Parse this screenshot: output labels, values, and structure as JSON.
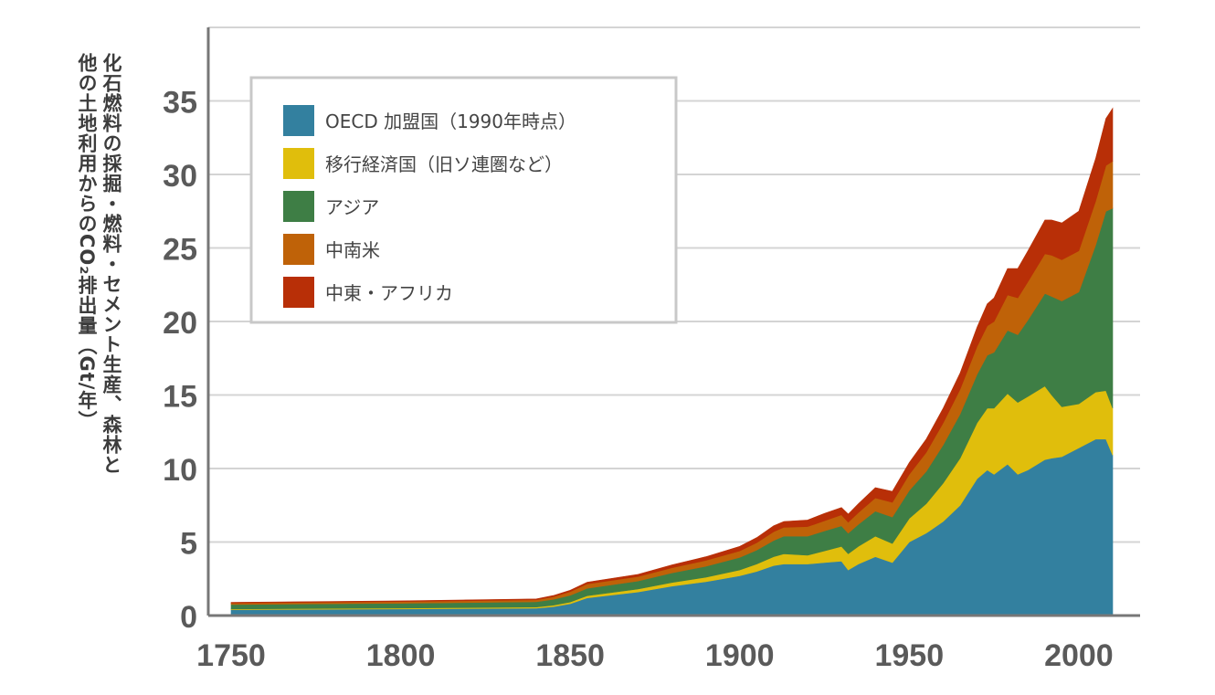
{
  "colors": {
    "oecd": "#33809f",
    "transition": "#e0be0c",
    "asia": "#3e7e45",
    "latam": "#bf6208",
    "mideast_africa": "#b82f07",
    "grid": "#d4d4d4",
    "axis": "#777777"
  },
  "chart_data": {
    "type": "area",
    "stacked": true,
    "ylabel_lines": [
      "化石燃料の採掘・燃料・セメント生産、森林と",
      "他の土地利用からのCO₂排出量（Gt/年）"
    ],
    "xlabel": "",
    "xlim": [
      1750,
      2010
    ],
    "ylim": [
      0,
      40
    ],
    "x_ticks": [
      "1750",
      "1800",
      "1850",
      "1900",
      "1950",
      "2000"
    ],
    "y_ticks": [
      "0",
      "5",
      "10",
      "15",
      "20",
      "25",
      "30",
      "35"
    ],
    "grid": true,
    "legend_position": "top-left",
    "x": [
      1750,
      1800,
      1840,
      1845,
      1850,
      1855,
      1870,
      1880,
      1890,
      1900,
      1905,
      1910,
      1913,
      1920,
      1925,
      1930,
      1932,
      1935,
      1940,
      1945,
      1950,
      1955,
      1960,
      1965,
      1970,
      1973,
      1975,
      1979,
      1982,
      1985,
      1990,
      1992,
      1995,
      2000,
      2005,
      2008,
      2010
    ],
    "series": [
      {
        "name": "OECD 加盟国（1990年時点）",
        "values": [
          0.4,
          0.45,
          0.5,
          0.6,
          0.8,
          1.2,
          1.6,
          2.0,
          2.3,
          2.7,
          3.0,
          3.4,
          3.5,
          3.5,
          3.6,
          3.7,
          3.1,
          3.5,
          4.0,
          3.6,
          5.0,
          5.6,
          6.4,
          7.5,
          9.3,
          9.9,
          9.6,
          10.3,
          9.6,
          9.9,
          10.6,
          10.7,
          10.8,
          11.4,
          12.0,
          12.0,
          10.9
        ]
      },
      {
        "name": "移行経済国（旧ソ連圏など）",
        "values": [
          0.05,
          0.06,
          0.08,
          0.1,
          0.12,
          0.15,
          0.2,
          0.25,
          0.3,
          0.4,
          0.5,
          0.6,
          0.7,
          0.6,
          0.8,
          1.0,
          1.1,
          1.2,
          1.4,
          1.3,
          1.6,
          2.0,
          2.6,
          3.2,
          3.8,
          4.2,
          4.5,
          4.8,
          4.9,
          5.0,
          5.0,
          4.3,
          3.4,
          3.0,
          3.2,
          3.3,
          3.2
        ]
      },
      {
        "name": "アジア",
        "values": [
          0.3,
          0.32,
          0.35,
          0.4,
          0.45,
          0.5,
          0.55,
          0.65,
          0.75,
          0.85,
          0.95,
          1.1,
          1.2,
          1.3,
          1.35,
          1.4,
          1.4,
          1.5,
          1.7,
          1.8,
          1.9,
          2.2,
          2.6,
          3.0,
          3.3,
          3.6,
          3.8,
          4.3,
          4.6,
          5.2,
          6.3,
          6.7,
          7.2,
          7.6,
          10.0,
          12.2,
          13.6
        ]
      },
      {
        "name": "中南米",
        "values": [
          0.1,
          0.12,
          0.14,
          0.18,
          0.25,
          0.3,
          0.3,
          0.35,
          0.4,
          0.45,
          0.5,
          0.6,
          0.6,
          0.65,
          0.7,
          0.75,
          0.75,
          0.8,
          0.9,
          1.0,
          1.1,
          1.3,
          1.5,
          1.7,
          1.9,
          2.0,
          2.1,
          2.4,
          2.5,
          2.6,
          2.7,
          2.8,
          2.8,
          2.8,
          3.0,
          3.1,
          3.2
        ]
      },
      {
        "name": "中東・アフリカ",
        "values": [
          0.05,
          0.05,
          0.06,
          0.08,
          0.1,
          0.12,
          0.15,
          0.2,
          0.25,
          0.3,
          0.35,
          0.4,
          0.4,
          0.45,
          0.5,
          0.5,
          0.55,
          0.6,
          0.7,
          0.75,
          0.8,
          0.9,
          1.0,
          1.1,
          1.3,
          1.5,
          1.6,
          1.8,
          2.0,
          2.1,
          2.3,
          2.4,
          2.5,
          2.7,
          2.9,
          3.2,
          3.6
        ]
      }
    ]
  }
}
